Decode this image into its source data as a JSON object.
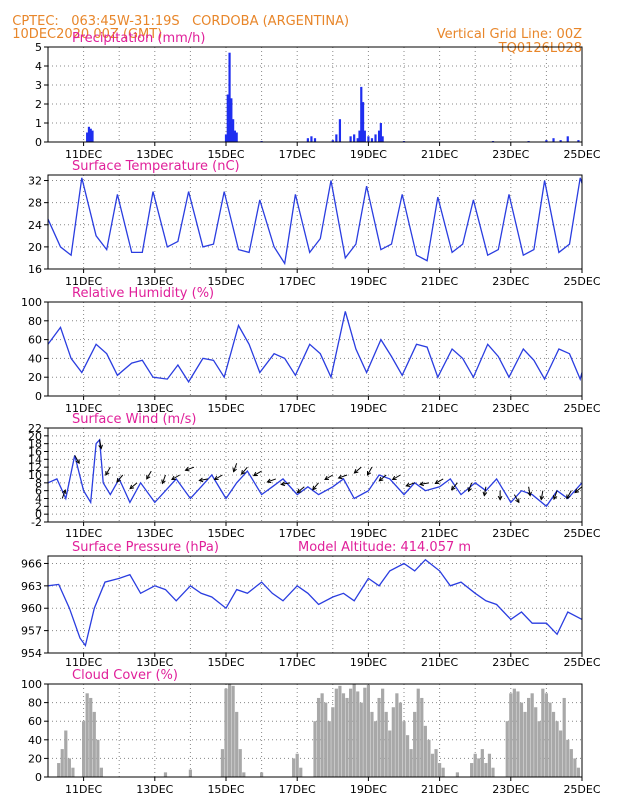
{
  "header": {
    "source": "CPTEC:",
    "coords": "063:45W-31:19S",
    "station": "CORDOBA (ARGENTINA)",
    "run": "10DEC2020 00Z (GMT)",
    "grid_note": "Vertical Grid Line: 00Z",
    "model": "TQ0126L028"
  },
  "x_labels": [
    "11DEC",
    "13DEC",
    "15DEC",
    "17DEC",
    "19DEC",
    "21DEC",
    "23DEC",
    "25DEC"
  ],
  "colors": {
    "line": "#2a3de0",
    "bar": "#1f2ef0",
    "cloud": "#a8a8a8",
    "title": "#e0209a",
    "header": "#e8862a",
    "arrow": "#000000"
  },
  "chart_data": [
    {
      "type": "bar",
      "title": "Precipitation (mm/h)",
      "ylim": [
        0,
        5
      ],
      "yticks": [
        "0",
        "1",
        "2",
        "3",
        "4",
        "5"
      ],
      "x_range_days": [
        10,
        25
      ],
      "x": [
        11.1,
        11.15,
        11.2,
        11.25,
        15.0,
        15.05,
        15.1,
        15.15,
        15.2,
        15.25,
        15.3,
        16.0,
        17.3,
        17.4,
        17.5,
        18.0,
        18.1,
        18.2,
        18.5,
        18.6,
        18.7,
        18.75,
        18.8,
        18.85,
        18.9,
        19.0,
        19.1,
        19.2,
        19.3,
        19.35,
        19.4,
        20.0,
        22.5,
        23.5,
        24.0,
        24.2,
        24.4,
        24.6,
        24.9
      ],
      "values": [
        0.5,
        0.8,
        0.7,
        0.6,
        0.4,
        2.5,
        4.7,
        2.3,
        1.2,
        0.6,
        0.5,
        0.05,
        0.2,
        0.3,
        0.2,
        0.1,
        0.4,
        1.2,
        0.3,
        0.4,
        0.2,
        0.6,
        2.9,
        2.1,
        0.6,
        0.3,
        0.2,
        0.4,
        0.6,
        1.0,
        0.3,
        0.05,
        0.05,
        0.05,
        0.1,
        0.2,
        0.1,
        0.3,
        0.1
      ]
    },
    {
      "type": "line",
      "title": "Surface Temperature (nC)",
      "ylim": [
        16,
        33
      ],
      "yticks": [
        "16",
        "20",
        "24",
        "28",
        "32"
      ],
      "x_range_days": [
        10,
        25
      ],
      "x": [
        10.0,
        10.35,
        10.65,
        10.95,
        11.35,
        11.65,
        11.95,
        12.35,
        12.65,
        12.95,
        13.35,
        13.65,
        13.95,
        14.35,
        14.65,
        14.95,
        15.35,
        15.65,
        15.95,
        16.35,
        16.65,
        16.95,
        17.35,
        17.65,
        17.95,
        18.35,
        18.65,
        18.95,
        19.35,
        19.65,
        19.95,
        20.35,
        20.65,
        20.95,
        21.35,
        21.65,
        21.95,
        22.35,
        22.65,
        22.95,
        23.35,
        23.65,
        23.95,
        24.35,
        24.65,
        24.95,
        25.0
      ],
      "values": [
        25,
        20,
        18.5,
        32.5,
        22,
        19.5,
        29.5,
        19,
        19,
        30,
        20,
        21,
        30,
        20,
        20.5,
        30,
        19.5,
        19,
        28.5,
        20,
        17,
        29.5,
        19,
        21.5,
        32,
        18,
        20.5,
        31,
        19.5,
        20.5,
        29.5,
        18.5,
        17.5,
        29,
        19,
        20.5,
        28.5,
        18.5,
        19.5,
        29.5,
        18.5,
        19.5,
        32,
        19,
        20.5,
        32.5,
        31.5
      ]
    },
    {
      "type": "line",
      "title": "Relative Humidity (%)",
      "ylim": [
        0,
        100
      ],
      "yticks": [
        "0",
        "20",
        "40",
        "60",
        "80",
        "100"
      ],
      "x_range_days": [
        10,
        25
      ],
      "x": [
        10.0,
        10.35,
        10.65,
        10.95,
        11.35,
        11.65,
        11.95,
        12.35,
        12.65,
        12.95,
        13.35,
        13.65,
        13.95,
        14.35,
        14.65,
        14.95,
        15.35,
        15.65,
        15.95,
        16.35,
        16.65,
        16.95,
        17.35,
        17.65,
        17.95,
        18.35,
        18.65,
        18.95,
        19.35,
        19.65,
        19.95,
        20.35,
        20.65,
        20.95,
        21.35,
        21.65,
        21.95,
        22.35,
        22.65,
        22.95,
        23.35,
        23.65,
        23.95,
        24.35,
        24.65,
        24.95,
        25.0
      ],
      "values": [
        55,
        73,
        40,
        25,
        55,
        45,
        22,
        35,
        38,
        20,
        18,
        33,
        15,
        40,
        38,
        20,
        75,
        55,
        25,
        45,
        40,
        22,
        55,
        45,
        20,
        90,
        50,
        25,
        60,
        42,
        22,
        55,
        52,
        20,
        50,
        40,
        20,
        55,
        42,
        20,
        50,
        38,
        18,
        50,
        45,
        18,
        25
      ]
    },
    {
      "type": "line",
      "title": "Surface Wind (m/s)",
      "ylim": [
        -2,
        22
      ],
      "yticks": [
        "-2",
        "0",
        "2",
        "4",
        "6",
        "8",
        "10",
        "12",
        "14",
        "16",
        "18",
        "20",
        "22"
      ],
      "x_range_days": [
        10,
        25
      ],
      "x": [
        10.0,
        10.25,
        10.5,
        10.75,
        11.0,
        11.2,
        11.35,
        11.45,
        11.55,
        11.75,
        12.0,
        12.3,
        12.6,
        13.0,
        13.3,
        13.6,
        14.0,
        14.3,
        14.6,
        15.0,
        15.3,
        15.6,
        16.0,
        16.3,
        16.6,
        17.0,
        17.3,
        17.6,
        18.0,
        18.3,
        18.6,
        19.0,
        19.3,
        19.6,
        20.0,
        20.3,
        20.6,
        21.0,
        21.3,
        21.6,
        22.0,
        22.3,
        22.6,
        23.0,
        23.3,
        23.6,
        24.0,
        24.3,
        24.6,
        25.0
      ],
      "values": [
        8,
        9,
        4,
        15,
        6,
        3,
        18,
        19,
        8,
        5,
        9,
        3,
        8,
        3,
        6,
        9,
        4,
        7,
        10,
        4,
        8,
        11,
        5,
        7,
        9,
        5,
        7,
        5,
        7,
        9,
        4,
        6,
        10,
        9,
        5,
        8,
        6,
        7,
        9,
        5,
        8,
        6,
        9,
        3,
        6,
        5,
        2,
        6,
        4,
        8
      ],
      "arrows_x": [
        10.4,
        10.75,
        11.45,
        11.75,
        12.1,
        12.5,
        12.9,
        13.3,
        13.7,
        14.1,
        14.5,
        14.9,
        15.3,
        15.6,
        16.0,
        16.4,
        16.8,
        17.2,
        17.6,
        18.0,
        18.4,
        18.8,
        19.1,
        19.5,
        19.9,
        20.3,
        20.7,
        21.1,
        21.5,
        21.9,
        22.3,
        22.7,
        23.1,
        23.5,
        23.9,
        24.3,
        24.7,
        25.0
      ],
      "arrows_y": [
        4,
        15,
        19,
        12,
        10,
        8,
        11,
        10,
        10,
        12,
        9,
        10,
        13,
        12,
        11,
        9,
        8,
        7,
        8,
        10,
        10,
        12,
        12,
        10,
        10,
        8,
        8,
        9,
        8,
        8,
        7,
        6,
        5,
        7,
        6,
        6,
        6,
        7
      ],
      "arrows_angle": [
        70,
        -60,
        -80,
        -120,
        -130,
        -140,
        -120,
        -110,
        -150,
        -160,
        -170,
        -150,
        -110,
        -130,
        -150,
        -160,
        -170,
        -140,
        -130,
        -150,
        -160,
        -140,
        -120,
        -140,
        -150,
        -160,
        -170,
        -150,
        -130,
        -110,
        -100,
        -90,
        -60,
        -80,
        -100,
        -110,
        -120,
        -140
      ]
    },
    {
      "type": "line",
      "title": "Surface Pressure (hPa)",
      "subtitle": "Model Altitude: 414.057 m",
      "ylim": [
        954,
        967
      ],
      "yticks": [
        "954",
        "957",
        "960",
        "963",
        "966"
      ],
      "x_range_days": [
        10,
        25
      ],
      "x": [
        10.0,
        10.3,
        10.6,
        10.9,
        11.05,
        11.3,
        11.6,
        12.0,
        12.3,
        12.6,
        13.0,
        13.3,
        13.6,
        14.0,
        14.3,
        14.6,
        15.0,
        15.3,
        15.6,
        16.0,
        16.3,
        16.6,
        17.0,
        17.3,
        17.6,
        18.0,
        18.3,
        18.6,
        19.0,
        19.3,
        19.6,
        20.0,
        20.3,
        20.6,
        21.0,
        21.3,
        21.6,
        22.0,
        22.3,
        22.6,
        23.0,
        23.3,
        23.6,
        24.0,
        24.3,
        24.6,
        25.0
      ],
      "values": [
        963,
        963.2,
        960,
        956,
        955,
        960,
        963.5,
        964,
        964.5,
        962,
        963,
        962.5,
        961,
        963,
        962,
        961.5,
        960,
        962.5,
        962,
        963.5,
        962,
        961,
        963,
        962,
        960.5,
        961.5,
        962,
        961,
        964,
        963,
        965,
        966,
        965,
        966.5,
        965,
        963,
        963.5,
        962,
        961,
        960.5,
        958.5,
        959.5,
        958,
        958,
        956.5,
        959.5,
        958.5
      ]
    },
    {
      "type": "bar",
      "title": "Cloud Cover (%)",
      "ylim": [
        0,
        100
      ],
      "yticks": [
        "0",
        "20",
        "40",
        "60",
        "80",
        "100"
      ],
      "x_range_days": [
        10,
        25
      ],
      "x": [
        10.3,
        10.4,
        10.5,
        10.6,
        10.7,
        11.0,
        11.1,
        11.2,
        11.3,
        11.4,
        11.5,
        13.3,
        14.0,
        14.9,
        15.0,
        15.1,
        15.2,
        15.3,
        15.4,
        15.5,
        16.0,
        16.9,
        17.0,
        17.1,
        17.5,
        17.6,
        17.7,
        17.8,
        17.9,
        18.0,
        18.1,
        18.2,
        18.3,
        18.4,
        18.5,
        18.6,
        18.7,
        18.8,
        18.9,
        19.0,
        19.1,
        19.2,
        19.3,
        19.4,
        19.5,
        19.6,
        19.7,
        19.8,
        19.9,
        20.0,
        20.1,
        20.2,
        20.3,
        20.4,
        20.5,
        20.6,
        20.7,
        20.8,
        20.9,
        21.0,
        21.1,
        21.5,
        21.9,
        22.0,
        22.1,
        22.2,
        22.3,
        22.4,
        22.5,
        22.9,
        23.0,
        23.1,
        23.2,
        23.3,
        23.4,
        23.5,
        23.6,
        23.7,
        23.8,
        23.9,
        24.0,
        24.1,
        24.2,
        24.3,
        24.4,
        24.5,
        24.6,
        24.7,
        24.8,
        24.9
      ],
      "values": [
        15,
        30,
        50,
        20,
        10,
        60,
        90,
        85,
        70,
        40,
        10,
        5,
        8,
        30,
        95,
        100,
        98,
        70,
        30,
        5,
        5,
        20,
        25,
        10,
        60,
        85,
        90,
        80,
        60,
        75,
        95,
        98,
        90,
        85,
        95,
        100,
        92,
        80,
        96,
        99,
        70,
        60,
        85,
        95,
        70,
        50,
        75,
        90,
        80,
        60,
        45,
        30,
        70,
        95,
        85,
        55,
        40,
        25,
        30,
        15,
        10,
        5,
        15,
        25,
        20,
        30,
        15,
        25,
        10,
        60,
        90,
        95,
        92,
        80,
        70,
        85,
        90,
        75,
        60,
        95,
        90,
        80,
        70,
        60,
        50,
        85,
        40,
        30,
        20,
        10
      ]
    }
  ]
}
